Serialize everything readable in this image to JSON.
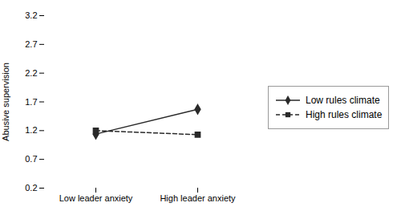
{
  "chart_data": {
    "type": "line",
    "categories": [
      "Low leader anxiety",
      "High leader anxiety"
    ],
    "series": [
      {
        "name": "Low rules climate",
        "color": "#2a2a2a",
        "values": [
          1.14,
          1.57
        ],
        "marker": "diamond",
        "line_style": "solid"
      },
      {
        "name": "High rules climate",
        "color": "#2a2a2a",
        "values": [
          1.2,
          1.13
        ],
        "marker": "square",
        "line_style": "dashed"
      }
    ],
    "ylabel": "Abusive supervision",
    "ylim": [
      0.2,
      3.2
    ],
    "yticks": [
      0.2,
      0.7,
      1.2,
      1.7,
      2.2,
      2.7,
      3.2
    ],
    "legend": "right"
  }
}
